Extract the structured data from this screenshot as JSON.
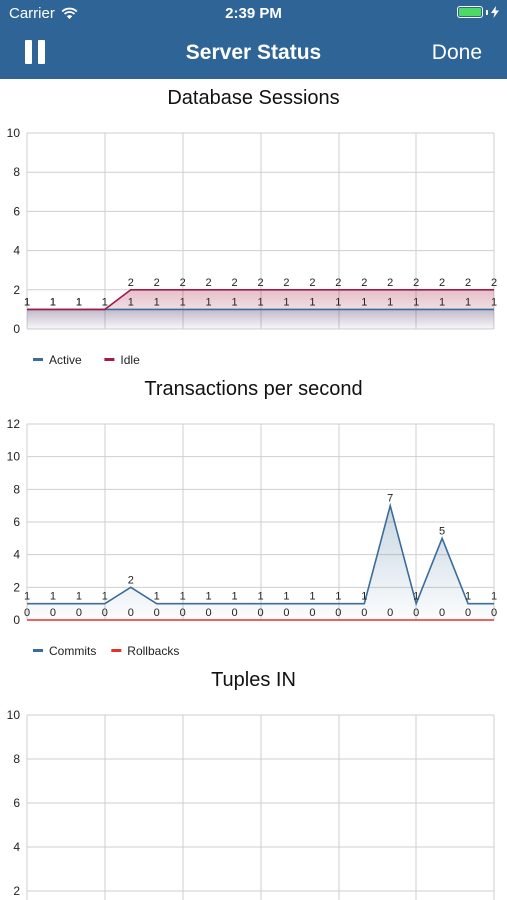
{
  "status_bar": {
    "carrier": "Carrier",
    "time": "2:39 PM"
  },
  "nav": {
    "title": "Server Status",
    "done_label": "Done"
  },
  "colors": {
    "navbar": "#2f6596",
    "active": "#3a6d99",
    "idle": "#a31b45",
    "commits": "#3a6d99",
    "rollbacks": "#e8302a"
  },
  "charts": [
    {
      "title": "Database Sessions",
      "chart_data": {
        "type": "line",
        "ylim": [
          0,
          10
        ],
        "yticks": [
          0,
          2,
          4,
          6,
          8,
          10
        ],
        "series": [
          {
            "name": "Active",
            "color": "#3a6d99",
            "values": [
              1,
              1,
              1,
              1,
              1,
              1,
              1,
              1,
              1,
              1,
              1,
              1,
              1,
              1,
              1,
              1,
              1,
              1,
              1
            ]
          },
          {
            "name": "Idle",
            "color": "#a31b45",
            "values": [
              1,
              1,
              1,
              1,
              2,
              2,
              2,
              2,
              2,
              2,
              2,
              2,
              2,
              2,
              2,
              2,
              2,
              2,
              2
            ]
          }
        ]
      }
    },
    {
      "title": "Transactions per second",
      "chart_data": {
        "type": "line",
        "ylim": [
          0,
          12
        ],
        "yticks": [
          0,
          2,
          4,
          6,
          8,
          10,
          12
        ],
        "series": [
          {
            "name": "Commits",
            "color": "#3a6d99",
            "values": [
              1,
              1,
              1,
              1,
              2,
              1,
              1,
              1,
              1,
              1,
              1,
              1,
              1,
              1,
              7,
              1,
              5,
              1,
              1
            ]
          },
          {
            "name": "Rollbacks",
            "color": "#e8302a",
            "values": [
              0,
              0,
              0,
              0,
              0,
              0,
              0,
              0,
              0,
              0,
              0,
              0,
              0,
              0,
              0,
              0,
              0,
              0,
              0
            ]
          }
        ]
      }
    },
    {
      "title": "Tuples IN",
      "chart_data": {
        "type": "line",
        "ylim": [
          0,
          10
        ],
        "yticks": [
          2,
          4,
          6,
          8,
          10
        ],
        "series": []
      }
    }
  ]
}
